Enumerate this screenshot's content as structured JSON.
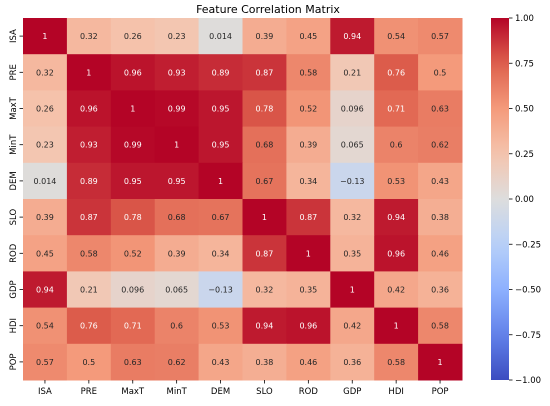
{
  "chart_data": {
    "type": "heatmap",
    "title": "Feature Correlation Matrix",
    "x_labels": [
      "ISA",
      "PRE",
      "MaxT",
      "MinT",
      "DEM",
      "SLO",
      "ROD",
      "GDP",
      "HDI",
      "POP"
    ],
    "y_labels": [
      "ISA",
      "PRE",
      "MaxT",
      "MinT",
      "DEM",
      "SLO",
      "ROD",
      "GDP",
      "HDI",
      "POP"
    ],
    "values": [
      [
        1,
        0.32,
        0.26,
        0.23,
        0.014,
        0.39,
        0.45,
        0.94,
        0.54,
        0.57
      ],
      [
        0.32,
        1,
        0.96,
        0.93,
        0.89,
        0.87,
        0.58,
        0.21,
        0.76,
        0.5
      ],
      [
        0.26,
        0.96,
        1,
        0.99,
        0.95,
        0.78,
        0.52,
        0.096,
        0.71,
        0.63
      ],
      [
        0.23,
        0.93,
        0.99,
        1,
        0.95,
        0.68,
        0.39,
        0.065,
        0.6,
        0.62
      ],
      [
        0.014,
        0.89,
        0.95,
        0.95,
        1,
        0.67,
        0.34,
        -0.13,
        0.53,
        0.43
      ],
      [
        0.39,
        0.87,
        0.78,
        0.68,
        0.67,
        1,
        0.87,
        0.32,
        0.94,
        0.38
      ],
      [
        0.45,
        0.58,
        0.52,
        0.39,
        0.34,
        0.87,
        1,
        0.35,
        0.96,
        0.46
      ],
      [
        0.94,
        0.21,
        0.096,
        0.065,
        -0.13,
        0.32,
        0.35,
        1,
        0.42,
        0.36
      ],
      [
        0.54,
        0.76,
        0.71,
        0.6,
        0.53,
        0.94,
        0.96,
        0.42,
        1,
        0.58
      ],
      [
        0.57,
        0.5,
        0.63,
        0.62,
        0.43,
        0.38,
        0.46,
        0.36,
        0.58,
        1
      ]
    ],
    "annotations": [
      [
        "1",
        "0.32",
        "0.26",
        "0.23",
        "0.014",
        "0.39",
        "0.45",
        "0.94",
        "0.54",
        "0.57"
      ],
      [
        "0.32",
        "1",
        "0.96",
        "0.93",
        "0.89",
        "0.87",
        "0.58",
        "0.21",
        "0.76",
        "0.5"
      ],
      [
        "0.26",
        "0.96",
        "1",
        "0.99",
        "0.95",
        "0.78",
        "0.52",
        "0.096",
        "0.71",
        "0.63"
      ],
      [
        "0.23",
        "0.93",
        "0.99",
        "1",
        "0.95",
        "0.68",
        "0.39",
        "0.065",
        "0.6",
        "0.62"
      ],
      [
        "0.014",
        "0.89",
        "0.95",
        "0.95",
        "1",
        "0.67",
        "0.34",
        "−0.13",
        "0.53",
        "0.43"
      ],
      [
        "0.39",
        "0.87",
        "0.78",
        "0.68",
        "0.67",
        "1",
        "0.87",
        "0.32",
        "0.94",
        "0.38"
      ],
      [
        "0.45",
        "0.58",
        "0.52",
        "0.39",
        "0.34",
        "0.87",
        "1",
        "0.35",
        "0.96",
        "0.46"
      ],
      [
        "0.94",
        "0.21",
        "0.096",
        "0.065",
        "−0.13",
        "0.32",
        "0.35",
        "1",
        "0.42",
        "0.36"
      ],
      [
        "0.54",
        "0.76",
        "0.71",
        "0.6",
        "0.53",
        "0.94",
        "0.96",
        "0.42",
        "1",
        "0.58"
      ],
      [
        "0.57",
        "0.5",
        "0.63",
        "0.62",
        "0.43",
        "0.38",
        "0.46",
        "0.36",
        "0.58",
        "1"
      ]
    ],
    "colormap": "coolwarm",
    "vmin": -1,
    "vmax": 1,
    "colorbar_ticks": [
      1.0,
      0.75,
      0.5,
      0.25,
      0.0,
      -0.25,
      -0.5,
      -0.75,
      -1.0
    ],
    "colorbar_tick_labels": [
      "1.00",
      "0.75",
      "0.50",
      "0.25",
      "0.00",
      "−0.25",
      "−0.50",
      "−0.75",
      "−1.00"
    ],
    "colors": {
      "low": "#3b4cc0",
      "mid": "#dddddd",
      "high": "#b40426"
    }
  }
}
